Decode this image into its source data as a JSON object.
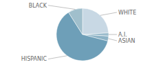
{
  "chart_data": {
    "type": "pie",
    "categories": [
      "WHITE",
      "A.I.",
      "ASIAN",
      "HISPANIC",
      "BLACK"
    ],
    "values": [
      24,
      2,
      3,
      62,
      9
    ],
    "colors": [
      "#c8d8e4",
      "#9bbccc",
      "#8db3c6",
      "#6e9fb8",
      "#a0bfcc"
    ]
  }
}
